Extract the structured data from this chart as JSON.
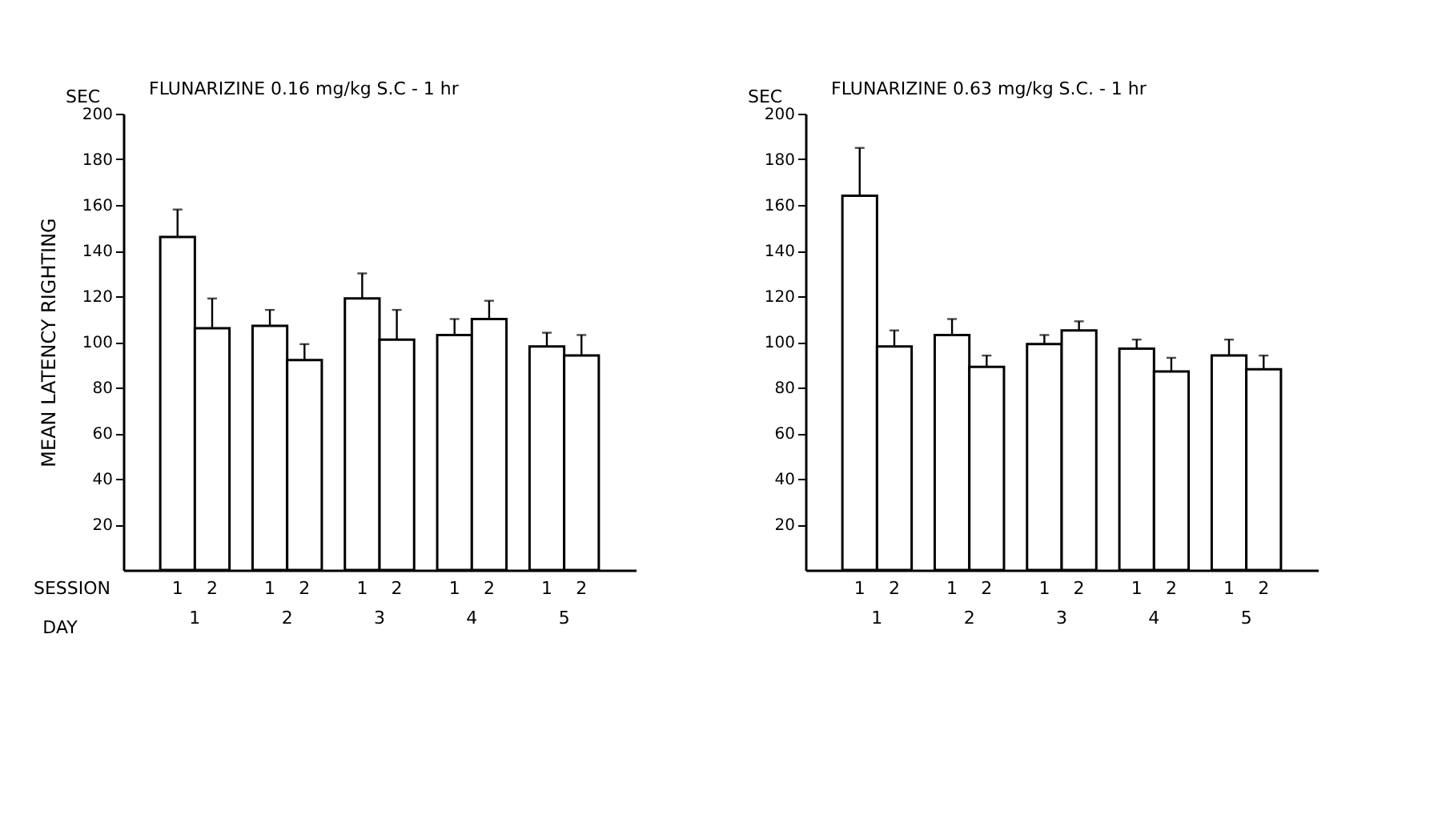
{
  "chart_data": [
    {
      "type": "bar",
      "title": "FLUNARIZINE 0.16 mg/kg S.C - 1 hr",
      "ylabel": "MEAN LATENCY RIGHTING",
      "xlabel": "DAY",
      "annotations": [
        "SEC",
        "SESSION"
      ],
      "categories": [
        "1",
        "2",
        "3",
        "4",
        "5"
      ],
      "ylim": [
        0,
        200
      ],
      "yticks": [
        20,
        40,
        60,
        80,
        100,
        120,
        140,
        160,
        180,
        200
      ],
      "grid": false,
      "legend": false,
      "series": [
        {
          "name": "1",
          "color": "#ffffff",
          "values": [
            146,
            107,
            119,
            103,
            98
          ],
          "errors": [
            [
              146,
              158
            ],
            [
              107,
              114
            ],
            [
              119,
              130
            ],
            [
              103,
              110
            ],
            [
              98,
              104
            ]
          ]
        },
        {
          "name": "2",
          "color": "#ffffff",
          "values": [
            106,
            92,
            101,
            110,
            94
          ],
          "errors": [
            [
              106,
              119
            ],
            [
              92,
              99
            ],
            [
              101,
              114
            ],
            [
              110,
              118
            ],
            [
              94,
              103
            ]
          ]
        }
      ]
    },
    {
      "type": "bar",
      "title": "FLUNARIZINE 0.63 mg/kg S.C. - 1 hr",
      "annotations": [
        "SEC"
      ],
      "categories": [
        "1",
        "2",
        "3",
        "4",
        "5"
      ],
      "ylim": [
        0,
        200
      ],
      "yticks": [
        20,
        40,
        60,
        80,
        100,
        120,
        140,
        160,
        180,
        200
      ],
      "grid": false,
      "legend": false,
      "series": [
        {
          "name": "1",
          "color": "#ffffff",
          "values": [
            164,
            103,
            99,
            97,
            94
          ],
          "errors": [
            [
              164,
              185
            ],
            [
              103,
              110
            ],
            [
              99,
              103
            ],
            [
              97,
              101
            ],
            [
              94,
              101
            ]
          ]
        },
        {
          "name": "2",
          "color": "#ffffff",
          "values": [
            98,
            89,
            105,
            87,
            88
          ],
          "errors": [
            [
              98,
              105
            ],
            [
              89,
              94
            ],
            [
              105,
              109
            ],
            [
              87,
              93
            ],
            [
              88,
              94
            ]
          ]
        }
      ]
    }
  ]
}
